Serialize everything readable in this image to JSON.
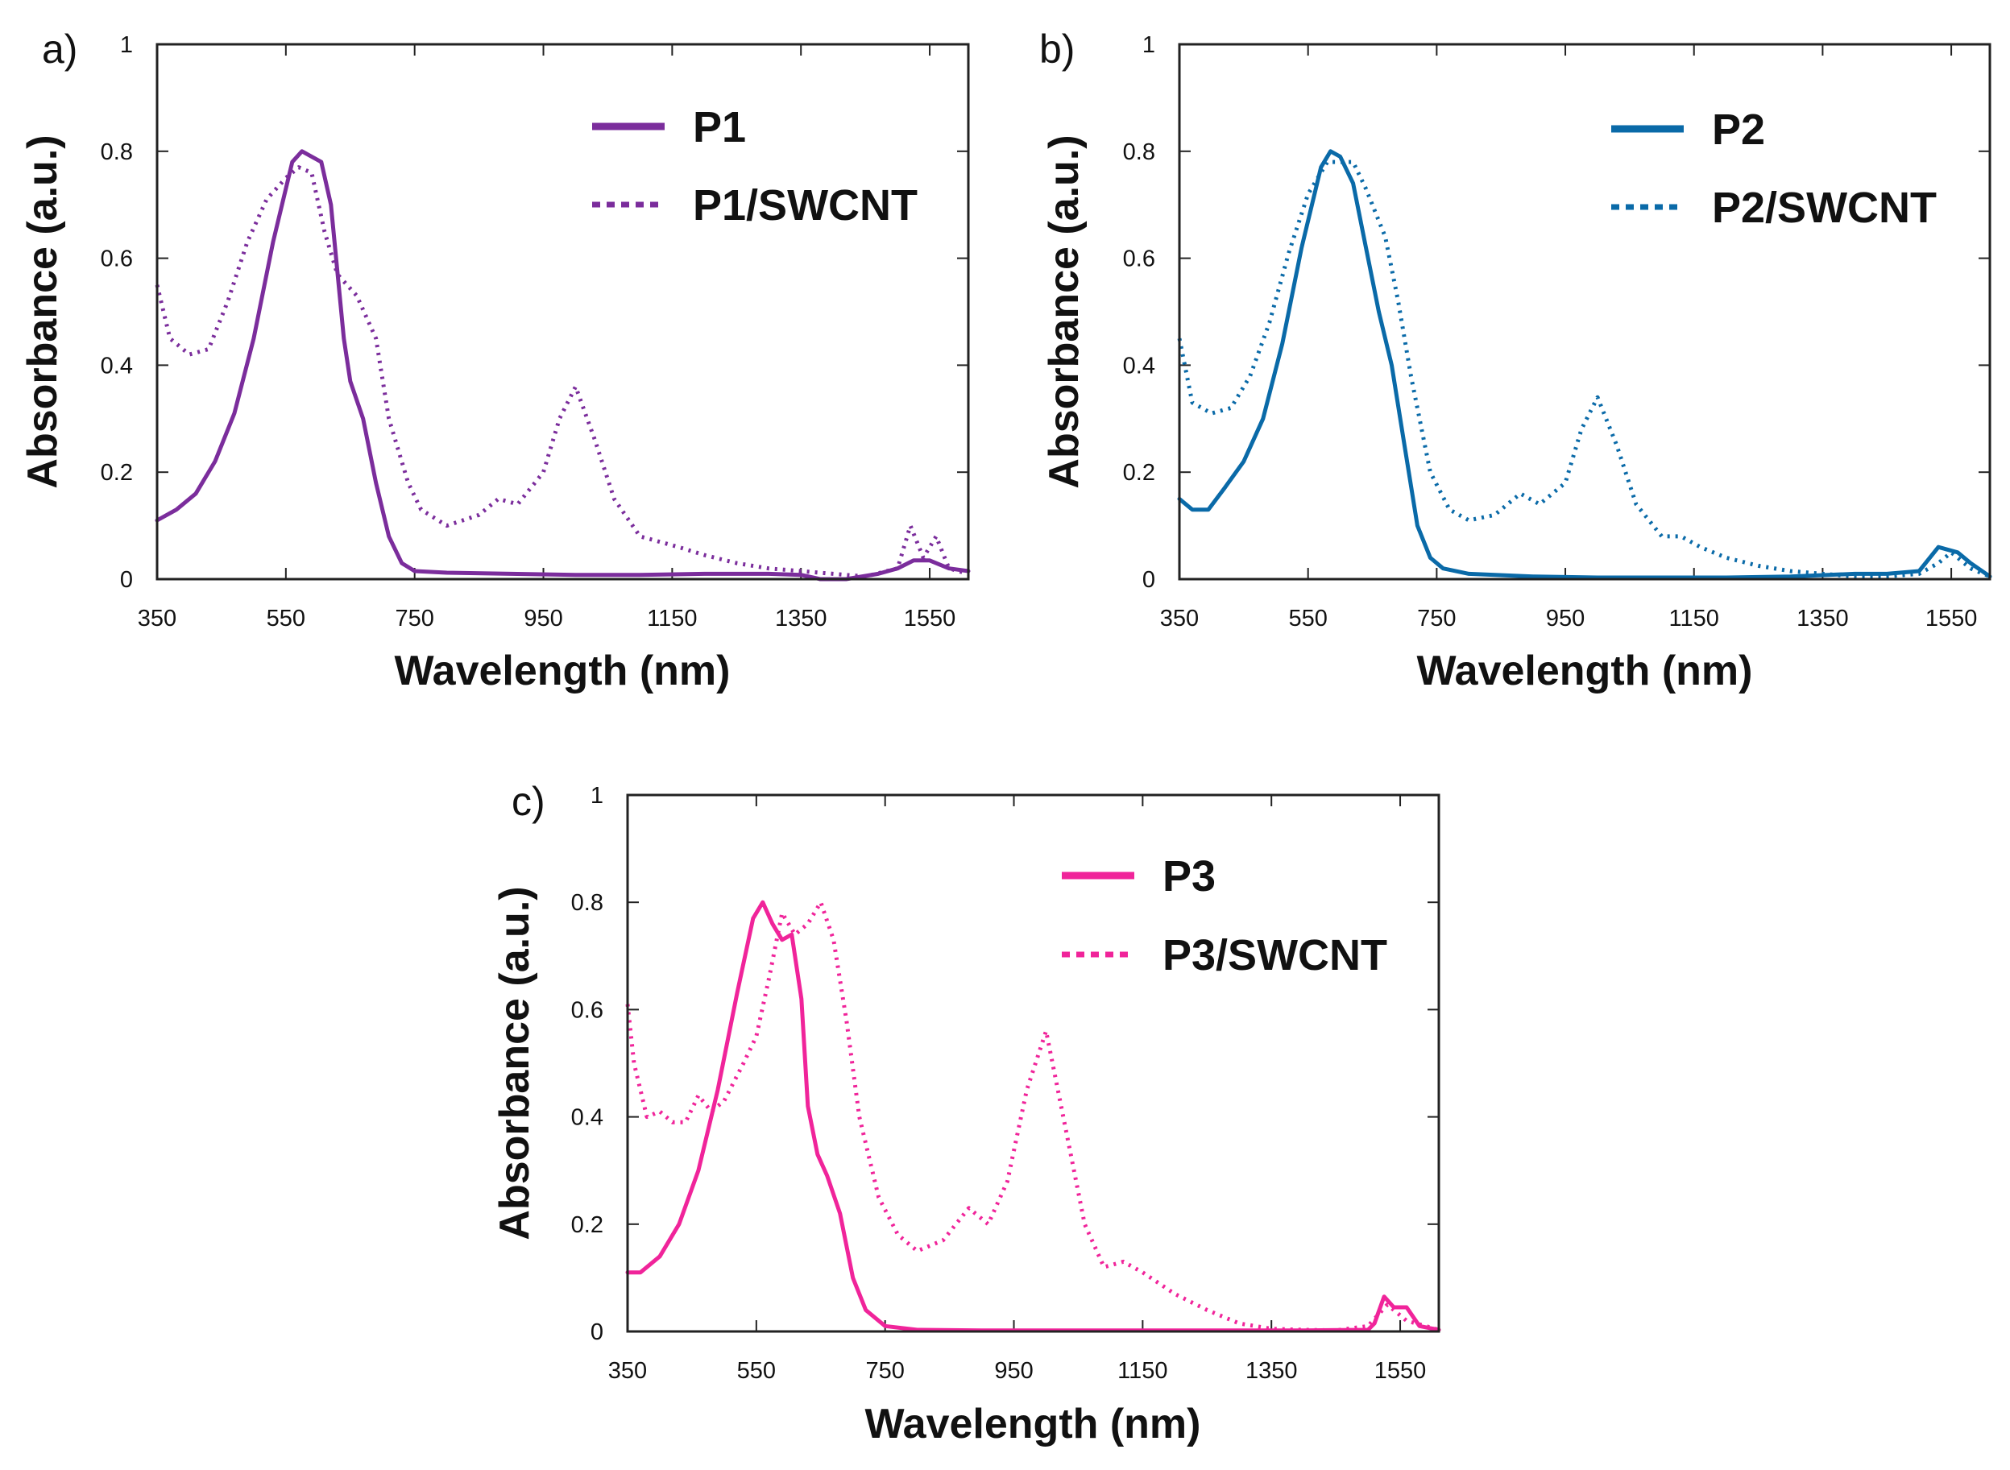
{
  "chart_data": [
    {
      "type": "line",
      "panel_label": "a)",
      "xlabel": "Wavelength (nm)",
      "ylabel": "Absorbance (a.u.)",
      "xlim": [
        350,
        1610
      ],
      "ylim": [
        0,
        1
      ],
      "xticks": [
        "350",
        "550",
        "750",
        "950",
        "1150",
        "1350",
        "1550"
      ],
      "yticks": [
        "0",
        "0.2",
        "0.4",
        "0.6",
        "0.8",
        "1"
      ],
      "legend_position": "top-right",
      "color": "#7b2d9c",
      "series": [
        {
          "name": "P1",
          "style": "solid",
          "x": [
            350,
            380,
            410,
            440,
            470,
            500,
            530,
            560,
            575,
            590,
            605,
            620,
            640,
            650,
            670,
            690,
            710,
            730,
            750,
            800,
            900,
            1000,
            1100,
            1200,
            1300,
            1350,
            1380,
            1420,
            1470,
            1500,
            1525,
            1550,
            1580,
            1610
          ],
          "y": [
            0.11,
            0.13,
            0.16,
            0.22,
            0.31,
            0.45,
            0.63,
            0.78,
            0.8,
            0.79,
            0.78,
            0.7,
            0.45,
            0.37,
            0.3,
            0.18,
            0.08,
            0.03,
            0.015,
            0.012,
            0.01,
            0.008,
            0.008,
            0.01,
            0.01,
            0.008,
            0.0,
            0.0,
            0.01,
            0.02,
            0.035,
            0.035,
            0.02,
            0.015
          ]
        },
        {
          "name": "P1/SWCNT",
          "style": "dotted",
          "x": [
            350,
            370,
            400,
            430,
            460,
            490,
            520,
            550,
            570,
            590,
            610,
            630,
            660,
            690,
            710,
            740,
            760,
            800,
            850,
            880,
            910,
            950,
            975,
            1000,
            1030,
            1060,
            1100,
            1130,
            1160,
            1200,
            1250,
            1300,
            1350,
            1400,
            1450,
            1500,
            1520,
            1540,
            1560,
            1580,
            1610
          ],
          "y": [
            0.55,
            0.45,
            0.42,
            0.43,
            0.52,
            0.63,
            0.71,
            0.75,
            0.77,
            0.76,
            0.65,
            0.57,
            0.53,
            0.45,
            0.3,
            0.18,
            0.13,
            0.1,
            0.12,
            0.15,
            0.14,
            0.2,
            0.3,
            0.36,
            0.26,
            0.15,
            0.08,
            0.07,
            0.06,
            0.045,
            0.03,
            0.02,
            0.015,
            0.01,
            0.005,
            0.02,
            0.1,
            0.04,
            0.08,
            0.02,
            0.01
          ]
        }
      ]
    },
    {
      "type": "line",
      "panel_label": "b)",
      "xlabel": "Wavelength (nm)",
      "ylabel": "Absorbance (a.u.)",
      "xlim": [
        350,
        1610
      ],
      "ylim": [
        0,
        1
      ],
      "xticks": [
        "350",
        "550",
        "750",
        "950",
        "1150",
        "1350",
        "1550"
      ],
      "yticks": [
        "0",
        "0.2",
        "0.4",
        "0.6",
        "0.8",
        "1"
      ],
      "legend_position": "top-right",
      "color": "#0a6aa8",
      "series": [
        {
          "name": "P2",
          "style": "solid",
          "x": [
            350,
            370,
            395,
            420,
            450,
            480,
            510,
            540,
            570,
            585,
            600,
            620,
            640,
            660,
            680,
            700,
            720,
            740,
            760,
            800,
            900,
            1000,
            1100,
            1200,
            1300,
            1400,
            1450,
            1500,
            1530,
            1560,
            1580,
            1610
          ],
          "y": [
            0.15,
            0.13,
            0.13,
            0.17,
            0.22,
            0.3,
            0.44,
            0.62,
            0.77,
            0.8,
            0.79,
            0.74,
            0.62,
            0.5,
            0.4,
            0.25,
            0.1,
            0.04,
            0.02,
            0.01,
            0.005,
            0.003,
            0.003,
            0.003,
            0.005,
            0.01,
            0.01,
            0.015,
            0.06,
            0.05,
            0.03,
            0.005
          ]
        },
        {
          "name": "P2/SWCNT",
          "style": "dotted",
          "x": [
            350,
            370,
            400,
            430,
            460,
            490,
            520,
            550,
            580,
            600,
            620,
            640,
            670,
            690,
            710,
            740,
            770,
            800,
            840,
            880,
            910,
            950,
            975,
            1000,
            1030,
            1060,
            1100,
            1130,
            1160,
            1200,
            1250,
            1300,
            1350,
            1400,
            1450,
            1500,
            1530,
            1550,
            1580,
            1610
          ],
          "y": [
            0.45,
            0.33,
            0.31,
            0.32,
            0.38,
            0.48,
            0.61,
            0.72,
            0.78,
            0.78,
            0.78,
            0.73,
            0.64,
            0.52,
            0.38,
            0.2,
            0.13,
            0.11,
            0.12,
            0.16,
            0.14,
            0.18,
            0.28,
            0.34,
            0.25,
            0.14,
            0.08,
            0.08,
            0.06,
            0.04,
            0.025,
            0.015,
            0.01,
            0.005,
            0.005,
            0.01,
            0.03,
            0.05,
            0.02,
            0.005
          ]
        }
      ]
    },
    {
      "type": "line",
      "panel_label": "c)",
      "xlabel": "Wavelength (nm)",
      "ylabel": "Absorbance (a.u.)",
      "xlim": [
        350,
        1610
      ],
      "ylim": [
        0,
        1
      ],
      "xticks": [
        "350",
        "550",
        "750",
        "950",
        "1150",
        "1350",
        "1550"
      ],
      "yticks": [
        "0",
        "0.2",
        "0.4",
        "0.6",
        "0.8",
        "1"
      ],
      "legend_position": "top-right",
      "color": "#f0249a",
      "series": [
        {
          "name": "P3",
          "style": "solid",
          "x": [
            350,
            370,
            400,
            430,
            460,
            490,
            520,
            545,
            560,
            575,
            590,
            605,
            620,
            630,
            645,
            660,
            680,
            700,
            720,
            750,
            800,
            900,
            1000,
            1100,
            1200,
            1300,
            1400,
            1500,
            1510,
            1525,
            1540,
            1560,
            1580,
            1610
          ],
          "y": [
            0.11,
            0.11,
            0.14,
            0.2,
            0.3,
            0.45,
            0.63,
            0.77,
            0.8,
            0.76,
            0.73,
            0.74,
            0.62,
            0.42,
            0.33,
            0.29,
            0.22,
            0.1,
            0.04,
            0.01,
            0.003,
            0.002,
            0.002,
            0.002,
            0.002,
            0.002,
            0.002,
            0.003,
            0.015,
            0.065,
            0.045,
            0.045,
            0.01,
            0.003
          ]
        },
        {
          "name": "P3/SWCNT",
          "style": "dotted",
          "x": [
            350,
            360,
            380,
            400,
            420,
            440,
            460,
            480,
            500,
            530,
            550,
            570,
            590,
            610,
            630,
            650,
            670,
            690,
            710,
            740,
            770,
            800,
            840,
            880,
            910,
            940,
            970,
            1000,
            1030,
            1060,
            1090,
            1120,
            1150,
            1200,
            1250,
            1300,
            1350,
            1400,
            1450,
            1500,
            1530,
            1560,
            1610
          ],
          "y": [
            0.61,
            0.5,
            0.4,
            0.41,
            0.39,
            0.39,
            0.44,
            0.41,
            0.43,
            0.5,
            0.55,
            0.66,
            0.78,
            0.74,
            0.76,
            0.8,
            0.73,
            0.58,
            0.4,
            0.25,
            0.18,
            0.15,
            0.17,
            0.23,
            0.2,
            0.28,
            0.45,
            0.56,
            0.38,
            0.2,
            0.12,
            0.13,
            0.11,
            0.07,
            0.04,
            0.015,
            0.005,
            0.003,
            0.002,
            0.01,
            0.05,
            0.02,
            0.003
          ]
        }
      ]
    }
  ]
}
